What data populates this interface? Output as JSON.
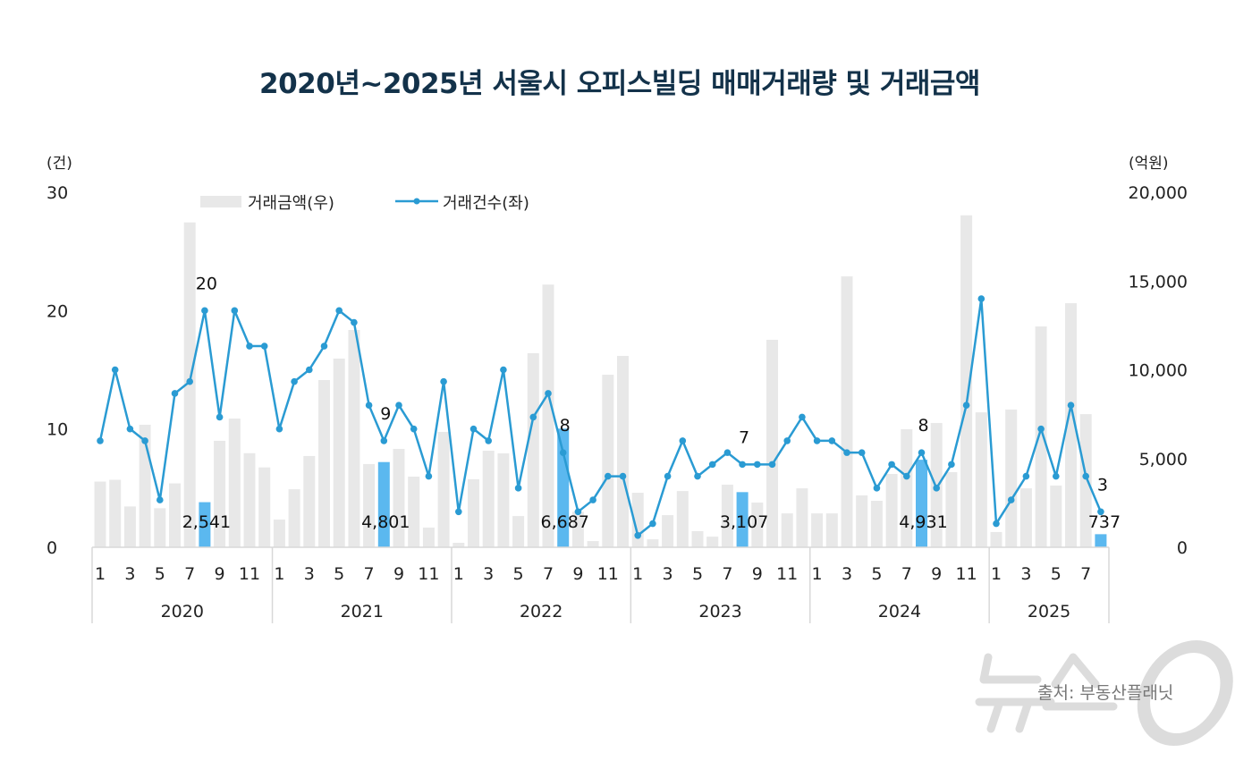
{
  "title": "2020년~2025년 서울시 오피스빌딩 매매거래량 및 거래금액",
  "source": "출처: 부동산플래닛",
  "watermark": "뉴스1",
  "colors": {
    "bar": "#e8e8e8",
    "bar_highlight": "#5bb8ef",
    "line": "#2a9bd3",
    "title": "#13324a"
  },
  "chart_data": {
    "type": "bar+line",
    "title": "2020년~2025년 서울시 오피스빌딩 매매거래량 및 거래금액",
    "y_left": {
      "unit": "(건)",
      "range": [
        0,
        30
      ],
      "ticks": [
        "0",
        "10",
        "20",
        "30"
      ]
    },
    "y_right": {
      "unit": "(억원)",
      "range": [
        0,
        20000
      ],
      "ticks": [
        "0",
        "5,000",
        "10,000",
        "15,000",
        "20,000"
      ]
    },
    "legend": {
      "placement": "top-left",
      "bar": "거래금액(우)",
      "line": "거래건수(좌)"
    },
    "years": [
      "2020",
      "2021",
      "2022",
      "2023",
      "2024",
      "2025"
    ],
    "month_ticks": [
      "1",
      "3",
      "5",
      "7",
      "9",
      "11"
    ],
    "months_per_year": [
      12,
      12,
      12,
      12,
      12,
      8
    ],
    "series": [
      {
        "name": "거래금액(우)",
        "axis": "right",
        "type": "bar",
        "values": [
          3700,
          3800,
          2300,
          6900,
          2200,
          3600,
          18300,
          2541,
          6000,
          7250,
          5300,
          4500,
          1560,
          3270,
          5140,
          9420,
          10630,
          12240,
          4690,
          4801,
          5540,
          3980,
          1110,
          6500,
          250,
          3830,
          5440,
          5290,
          1760,
          10930,
          14800,
          6687,
          2000,
          350,
          9720,
          10780,
          3070,
          450,
          1810,
          3170,
          910,
          600,
          3530,
          3107,
          2520,
          11690,
          1910,
          3320,
          1910,
          1910,
          15260,
          2920,
          2620,
          4130,
          6650,
          4931,
          7000,
          4230,
          18700,
          7600,
          860,
          7760,
          3320,
          12440,
          3480,
          13750,
          7500,
          737
        ]
      },
      {
        "name": "거래건수(좌)",
        "axis": "left",
        "type": "line",
        "values": [
          9,
          15,
          10,
          9,
          4,
          13,
          14,
          20,
          11,
          20,
          17,
          17,
          10,
          14,
          15,
          17,
          20,
          19,
          12,
          9,
          12,
          10,
          6,
          14,
          3,
          10,
          9,
          15,
          5,
          11,
          13,
          8,
          3,
          4,
          6,
          6,
          1,
          2,
          6,
          9,
          6,
          7,
          8,
          7,
          7,
          7,
          9,
          11,
          9,
          9,
          8,
          8,
          5,
          7,
          6,
          8,
          5,
          7,
          12,
          21,
          2,
          4,
          6,
          10,
          6,
          12,
          6,
          3
        ]
      }
    ],
    "annotations": [
      {
        "period": "2020-08",
        "count_label": "20",
        "amount_label": "2,541"
      },
      {
        "period": "2021-08",
        "count_label": "9",
        "amount_label": "4,801"
      },
      {
        "period": "2022-08",
        "count_label": "8",
        "amount_label": "6,687"
      },
      {
        "period": "2023-08",
        "count_label": "7",
        "amount_label": "3,107"
      },
      {
        "period": "2024-08",
        "count_label": "8",
        "amount_label": "4,931"
      },
      {
        "period": "2025-08",
        "count_label": "3",
        "amount_label": "737"
      }
    ]
  }
}
